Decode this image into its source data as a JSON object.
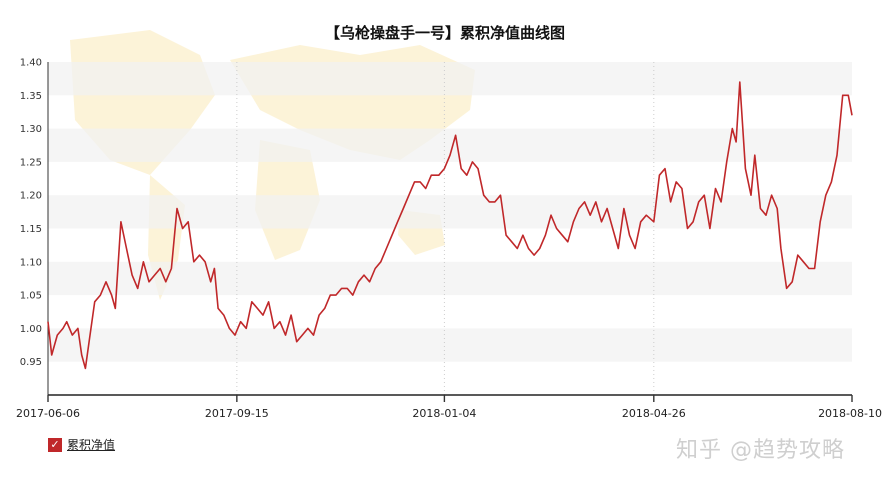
{
  "chart_data": {
    "type": "line",
    "title": "【乌枪操盘手一号】累积净值曲线图",
    "ylim": [
      0.9,
      1.4
    ],
    "yticks": [
      "0.95",
      "1.00",
      "1.05",
      "1.10",
      "1.15",
      "1.20",
      "1.25",
      "1.30",
      "1.35",
      "1.40"
    ],
    "x_tick_labels": [
      "2017-06-06",
      "2017-09-15",
      "2018-01-04",
      "2018-04-26",
      "2018-08-10"
    ],
    "grid": "vertical dotted lines at x ticks, alternating horizontal bands",
    "legend_position": "bottom-left",
    "series": [
      {
        "name": "累积净值",
        "color": "#c0282a",
        "points": [
          [
            "2017-06-06",
            1.01
          ],
          [
            "2017-06-08",
            0.96
          ],
          [
            "2017-06-11",
            0.99
          ],
          [
            "2017-06-14",
            1.0
          ],
          [
            "2017-06-16",
            1.01
          ],
          [
            "2017-06-19",
            0.99
          ],
          [
            "2017-06-22",
            1.0
          ],
          [
            "2017-06-24",
            0.96
          ],
          [
            "2017-06-26",
            0.94
          ],
          [
            "2017-06-28",
            0.98
          ],
          [
            "2017-07-01",
            1.04
          ],
          [
            "2017-07-04",
            1.05
          ],
          [
            "2017-07-07",
            1.07
          ],
          [
            "2017-07-10",
            1.05
          ],
          [
            "2017-07-12",
            1.03
          ],
          [
            "2017-07-15",
            1.16
          ],
          [
            "2017-07-18",
            1.12
          ],
          [
            "2017-07-21",
            1.08
          ],
          [
            "2017-07-24",
            1.06
          ],
          [
            "2017-07-27",
            1.1
          ],
          [
            "2017-07-30",
            1.07
          ],
          [
            "2017-08-02",
            1.08
          ],
          [
            "2017-08-05",
            1.09
          ],
          [
            "2017-08-08",
            1.07
          ],
          [
            "2017-08-11",
            1.09
          ],
          [
            "2017-08-14",
            1.18
          ],
          [
            "2017-08-17",
            1.15
          ],
          [
            "2017-08-20",
            1.16
          ],
          [
            "2017-08-23",
            1.1
          ],
          [
            "2017-08-26",
            1.11
          ],
          [
            "2017-08-29",
            1.1
          ],
          [
            "2017-09-01",
            1.07
          ],
          [
            "2017-09-03",
            1.09
          ],
          [
            "2017-09-05",
            1.03
          ],
          [
            "2017-09-08",
            1.02
          ],
          [
            "2017-09-11",
            1.0
          ],
          [
            "2017-09-14",
            0.99
          ],
          [
            "2017-09-17",
            1.01
          ],
          [
            "2017-09-20",
            1.0
          ],
          [
            "2017-09-23",
            1.04
          ],
          [
            "2017-09-26",
            1.03
          ],
          [
            "2017-09-29",
            1.02
          ],
          [
            "2017-10-02",
            1.04
          ],
          [
            "2017-10-05",
            1.0
          ],
          [
            "2017-10-08",
            1.01
          ],
          [
            "2017-10-11",
            0.99
          ],
          [
            "2017-10-14",
            1.02
          ],
          [
            "2017-10-17",
            0.98
          ],
          [
            "2017-10-20",
            0.99
          ],
          [
            "2017-10-23",
            1.0
          ],
          [
            "2017-10-26",
            0.99
          ],
          [
            "2017-10-29",
            1.02
          ],
          [
            "2017-11-01",
            1.03
          ],
          [
            "2017-11-04",
            1.05
          ],
          [
            "2017-11-07",
            1.05
          ],
          [
            "2017-11-10",
            1.06
          ],
          [
            "2017-11-13",
            1.06
          ],
          [
            "2017-11-16",
            1.05
          ],
          [
            "2017-11-19",
            1.07
          ],
          [
            "2017-11-22",
            1.08
          ],
          [
            "2017-11-25",
            1.07
          ],
          [
            "2017-11-28",
            1.09
          ],
          [
            "2017-12-01",
            1.1
          ],
          [
            "2017-12-04",
            1.12
          ],
          [
            "2017-12-07",
            1.14
          ],
          [
            "2017-12-10",
            1.16
          ],
          [
            "2017-12-13",
            1.18
          ],
          [
            "2017-12-16",
            1.2
          ],
          [
            "2017-12-19",
            1.22
          ],
          [
            "2017-12-22",
            1.22
          ],
          [
            "2017-12-25",
            1.21
          ],
          [
            "2017-12-28",
            1.23
          ],
          [
            "2018-01-01",
            1.23
          ],
          [
            "2018-01-04",
            1.24
          ],
          [
            "2018-01-07",
            1.26
          ],
          [
            "2018-01-10",
            1.29
          ],
          [
            "2018-01-13",
            1.24
          ],
          [
            "2018-01-16",
            1.23
          ],
          [
            "2018-01-19",
            1.25
          ],
          [
            "2018-01-22",
            1.24
          ],
          [
            "2018-01-25",
            1.2
          ],
          [
            "2018-01-28",
            1.19
          ],
          [
            "2018-01-31",
            1.19
          ],
          [
            "2018-02-03",
            1.2
          ],
          [
            "2018-02-06",
            1.14
          ],
          [
            "2018-02-09",
            1.13
          ],
          [
            "2018-02-12",
            1.12
          ],
          [
            "2018-02-15",
            1.14
          ],
          [
            "2018-02-18",
            1.12
          ],
          [
            "2018-02-21",
            1.11
          ],
          [
            "2018-02-24",
            1.12
          ],
          [
            "2018-02-27",
            1.14
          ],
          [
            "2018-03-02",
            1.17
          ],
          [
            "2018-03-05",
            1.15
          ],
          [
            "2018-03-08",
            1.14
          ],
          [
            "2018-03-11",
            1.13
          ],
          [
            "2018-03-14",
            1.16
          ],
          [
            "2018-03-17",
            1.18
          ],
          [
            "2018-03-20",
            1.19
          ],
          [
            "2018-03-23",
            1.17
          ],
          [
            "2018-03-26",
            1.19
          ],
          [
            "2018-03-29",
            1.16
          ],
          [
            "2018-04-01",
            1.18
          ],
          [
            "2018-04-04",
            1.15
          ],
          [
            "2018-04-07",
            1.12
          ],
          [
            "2018-04-10",
            1.18
          ],
          [
            "2018-04-13",
            1.14
          ],
          [
            "2018-04-16",
            1.12
          ],
          [
            "2018-04-19",
            1.16
          ],
          [
            "2018-04-22",
            1.17
          ],
          [
            "2018-04-26",
            1.16
          ],
          [
            "2018-04-29",
            1.23
          ],
          [
            "2018-05-02",
            1.24
          ],
          [
            "2018-05-05",
            1.19
          ],
          [
            "2018-05-08",
            1.22
          ],
          [
            "2018-05-11",
            1.21
          ],
          [
            "2018-05-14",
            1.15
          ],
          [
            "2018-05-17",
            1.16
          ],
          [
            "2018-05-20",
            1.19
          ],
          [
            "2018-05-23",
            1.2
          ],
          [
            "2018-05-26",
            1.15
          ],
          [
            "2018-05-29",
            1.21
          ],
          [
            "2018-06-01",
            1.19
          ],
          [
            "2018-06-04",
            1.25
          ],
          [
            "2018-06-07",
            1.3
          ],
          [
            "2018-06-09",
            1.28
          ],
          [
            "2018-06-11",
            1.37
          ],
          [
            "2018-06-14",
            1.24
          ],
          [
            "2018-06-17",
            1.2
          ],
          [
            "2018-06-19",
            1.26
          ],
          [
            "2018-06-22",
            1.18
          ],
          [
            "2018-06-25",
            1.17
          ],
          [
            "2018-06-28",
            1.2
          ],
          [
            "2018-07-01",
            1.18
          ],
          [
            "2018-07-03",
            1.12
          ],
          [
            "2018-07-06",
            1.06
          ],
          [
            "2018-07-09",
            1.07
          ],
          [
            "2018-07-12",
            1.11
          ],
          [
            "2018-07-15",
            1.1
          ],
          [
            "2018-07-18",
            1.09
          ],
          [
            "2018-07-21",
            1.09
          ],
          [
            "2018-07-24",
            1.16
          ],
          [
            "2018-07-27",
            1.2
          ],
          [
            "2018-07-30",
            1.22
          ],
          [
            "2018-08-02",
            1.26
          ],
          [
            "2018-08-05",
            1.35
          ],
          [
            "2018-08-08",
            1.35
          ],
          [
            "2018-08-10",
            1.32
          ]
        ]
      }
    ]
  },
  "legend": {
    "label": "累积净值"
  },
  "watermark": "知乎 @趋势攻略"
}
